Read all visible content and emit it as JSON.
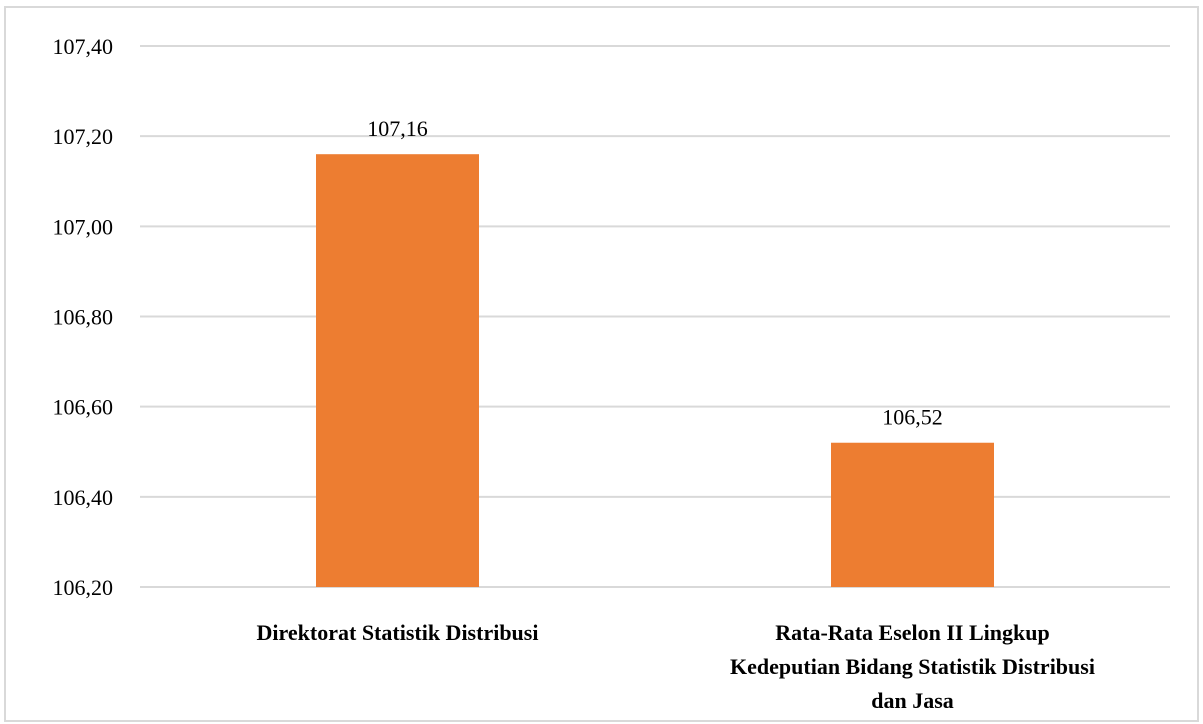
{
  "chart_data": {
    "type": "bar",
    "categories": [
      [
        "Direktorat Statistik Distribusi"
      ],
      [
        "Rata-Rata Eselon II Lingkup",
        "Kedeputian Bidang Statistik Distribusi",
        "dan Jasa"
      ]
    ],
    "values": [
      107.16,
      106.52
    ],
    "data_labels": [
      "107,16",
      "106,52"
    ],
    "y_ticks": [
      106.2,
      106.4,
      106.6,
      106.8,
      107.0,
      107.2,
      107.4
    ],
    "y_tick_labels": [
      "106,20",
      "106,40",
      "106,60",
      "106,80",
      "107,00",
      "107,20",
      "107,40"
    ],
    "ylim": [
      106.2,
      107.4
    ],
    "grid": true,
    "legend": "none",
    "bar_color": "#ED7D31",
    "grid_color": "#d9d9d9",
    "title": "",
    "xlabel": "",
    "ylabel": ""
  }
}
